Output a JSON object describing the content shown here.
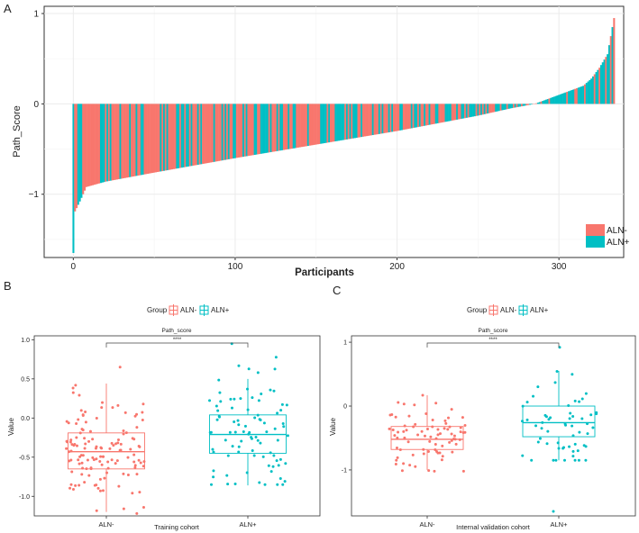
{
  "colors": {
    "neg": "#F8766D",
    "pos": "#00BFC4",
    "grid": "#ebebeb",
    "axis": "#333333",
    "text": "#222222"
  },
  "panels": {
    "a": {
      "letter": "A"
    },
    "b": {
      "letter": "B"
    },
    "c": {
      "letter": "C"
    }
  },
  "chart_data": [
    {
      "id": "A",
      "type": "bar",
      "title": "",
      "xlabel": "Participants",
      "ylabel": "Path_Score",
      "xlim": [
        -18,
        340
      ],
      "ylim": [
        -1.7,
        1.08
      ],
      "xticks": [
        0,
        100,
        200,
        300
      ],
      "yticks": [
        -1,
        0,
        1
      ],
      "grid": true,
      "n_participants": 335,
      "sorted": "ascending",
      "anchor_values": [
        {
          "index": 0,
          "value": -1.65
        },
        {
          "index": 1,
          "value": -1.19
        },
        {
          "index": 4,
          "value": -1.08
        },
        {
          "index": 8,
          "value": -0.92
        },
        {
          "index": 20,
          "value": -0.86
        },
        {
          "index": 50,
          "value": -0.76
        },
        {
          "index": 100,
          "value": -0.6
        },
        {
          "index": 150,
          "value": -0.45
        },
        {
          "index": 200,
          "value": -0.3
        },
        {
          "index": 250,
          "value": -0.13
        },
        {
          "index": 270,
          "value": -0.05
        },
        {
          "index": 285,
          "value": 0.0
        },
        {
          "index": 300,
          "value": 0.1
        },
        {
          "index": 315,
          "value": 0.2
        },
        {
          "index": 320,
          "value": 0.28
        },
        {
          "index": 325,
          "value": 0.4
        },
        {
          "index": 330,
          "value": 0.55
        },
        {
          "index": 334,
          "value": 0.95
        }
      ],
      "series": [
        {
          "name": "ALN-",
          "color": "#F8766D"
        },
        {
          "name": "ALN+",
          "color": "#00BFC4"
        }
      ],
      "legend": {
        "position": "bottom-right",
        "entries": [
          "ALN-",
          "ALN+"
        ]
      }
    },
    {
      "id": "B",
      "type": "box",
      "title": "Path_score",
      "xlabel": "Training cohort",
      "ylabel": "Value",
      "ylim": [
        -1.25,
        1.05
      ],
      "yticks": [
        -1.0,
        -0.5,
        0.0,
        0.5,
        1.0
      ],
      "ytick_labels": [
        "-1.0",
        "-0.5",
        "0.0",
        "0.5",
        "1.0"
      ],
      "categories": [
        "ALN-",
        "ALN+"
      ],
      "legend_title": "Group",
      "legend": [
        "ALN-",
        "ALN+"
      ],
      "significance": "****",
      "n_points": [
        130,
        90
      ],
      "series": [
        {
          "name": "ALN-",
          "min": -1.2,
          "q1": -0.65,
          "median": -0.43,
          "q3": -0.19,
          "max": 0.44,
          "points_range": [
            -1.22,
            0.65
          ]
        },
        {
          "name": "ALN+",
          "min": -0.86,
          "q1": -0.45,
          "median": -0.21,
          "q3": 0.04,
          "max": 0.5,
          "points_range": [
            -0.85,
            0.95
          ]
        }
      ]
    },
    {
      "id": "C",
      "type": "box",
      "title": "Path_score",
      "xlabel": "Internal validation cohort",
      "ylabel": "Value",
      "ylim": [
        -1.72,
        1.1
      ],
      "yticks": [
        -1,
        0,
        1
      ],
      "ytick_labels": [
        "-1",
        "0",
        "1"
      ],
      "categories": [
        "ALN-",
        "ALN+"
      ],
      "legend_title": "Group",
      "legend": [
        "ALN-",
        "ALN+"
      ],
      "significance": "****",
      "n_points": [
        80,
        60
      ],
      "series": [
        {
          "name": "ALN-",
          "min": -1.0,
          "q1": -0.68,
          "median": -0.52,
          "q3": -0.32,
          "max": 0.17,
          "points_range": [
            -1.02,
            0.17
          ]
        },
        {
          "name": "ALN+",
          "min": -0.85,
          "q1": -0.48,
          "median": -0.26,
          "q3": 0.0,
          "max": 0.55,
          "points_range": [
            -0.85,
            0.92
          ],
          "outliers": [
            -1.65
          ]
        }
      ]
    }
  ]
}
